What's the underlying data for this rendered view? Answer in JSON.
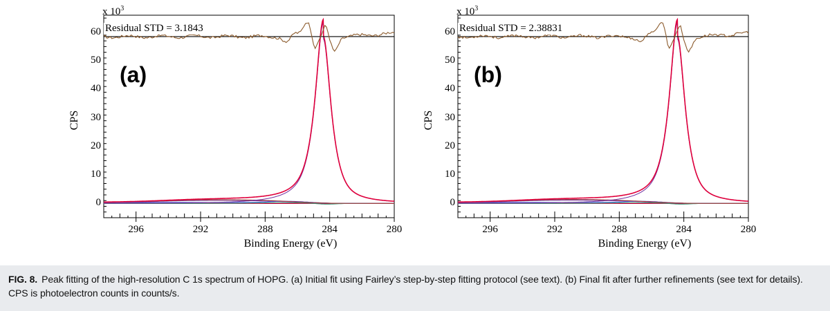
{
  "caption": {
    "label": "FIG. 8.",
    "text": "Peak fitting of the high-resolution C 1s spectrum of HOPG. (a) Initial fit using Fairley’s step-by-step fitting protocol (see text). (b) Final fit after further refinements (see text for details). CPS is photoelectron counts in counts/s."
  },
  "colors": {
    "envelope": "#e0003c",
    "residual": "#8b5a2b",
    "component_purple": "#7030a0",
    "component_blue": "#3050d0",
    "component_green": "#2f8f6f",
    "background": "#a04040",
    "caption_bg": "#e9ebee"
  },
  "chart_data": [
    {
      "type": "line",
      "panel_label": "(a)",
      "multiplier_label": "x 10",
      "multiplier_exponent": "3",
      "residual_label": "Residual STD = 3.1843",
      "xlabel": "Binding Energy (eV)",
      "ylabel": "CPS",
      "x_reversed": true,
      "xlim": [
        298,
        280
      ],
      "ylim": [
        -5,
        66
      ],
      "x_ticks": [
        "296",
        "292",
        "288",
        "284",
        "280"
      ],
      "y_ticks": [
        "0",
        "10",
        "20",
        "30",
        "40",
        "50",
        "60"
      ],
      "peak": {
        "center": 284.4,
        "height": 58.5,
        "fwhm": 0.55
      },
      "broad_component": {
        "center": 291.5,
        "height": 0.9,
        "width": 4.0
      },
      "residual_baseline": 58.5
    },
    {
      "type": "line",
      "panel_label": "(b)",
      "multiplier_label": "x 10",
      "multiplier_exponent": "3",
      "residual_label": "Residual STD = 2.38831",
      "xlabel": "Binding Energy (eV)",
      "ylabel": "CPS",
      "x_reversed": true,
      "xlim": [
        298,
        280
      ],
      "ylim": [
        -5,
        66
      ],
      "x_ticks": [
        "296",
        "292",
        "288",
        "284",
        "280"
      ],
      "y_ticks": [
        "0",
        "10",
        "20",
        "30",
        "40",
        "50",
        "60"
      ],
      "peak": {
        "center": 284.4,
        "height": 58.5,
        "fwhm": 0.55
      },
      "broad_component": {
        "center": 291.5,
        "height": 1.0,
        "width": 4.0
      },
      "residual_baseline": 58.5
    }
  ]
}
